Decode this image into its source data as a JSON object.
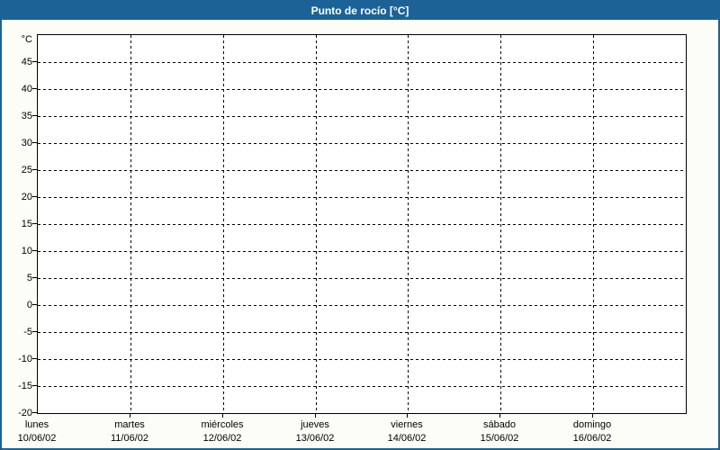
{
  "window": {
    "title": "Punto de rocío [°C]"
  },
  "chart_data": {
    "type": "line",
    "title": "Punto de rocío [°C]",
    "series": [],
    "grid": "dashed",
    "legend": "none",
    "y_axis": {
      "unit_label": "°C",
      "min": -20,
      "max": 50,
      "step": 5,
      "tick_labels": [
        "45",
        "40",
        "35",
        "30",
        "25",
        "20",
        "15",
        "10",
        "5",
        "0",
        "-5",
        "-10",
        "-15",
        "-20"
      ]
    },
    "x_axis": {
      "days": [
        {
          "name": "lunes",
          "date": "10/06/02"
        },
        {
          "name": "martes",
          "date": "11/06/02"
        },
        {
          "name": "miércoles",
          "date": "12/06/02"
        },
        {
          "name": "jueves",
          "date": "13/06/02"
        },
        {
          "name": "viernes",
          "date": "14/06/02"
        },
        {
          "name": "sábado",
          "date": "15/06/02"
        },
        {
          "name": "domingo",
          "date": "16/06/02"
        }
      ]
    },
    "colors": {
      "frame": "#1d6296",
      "canvas_background": "#fcfdf6",
      "plot_background": "#ffffff",
      "grid_line": "#000000",
      "text": "#000000",
      "title_text": "#ffffff"
    }
  }
}
